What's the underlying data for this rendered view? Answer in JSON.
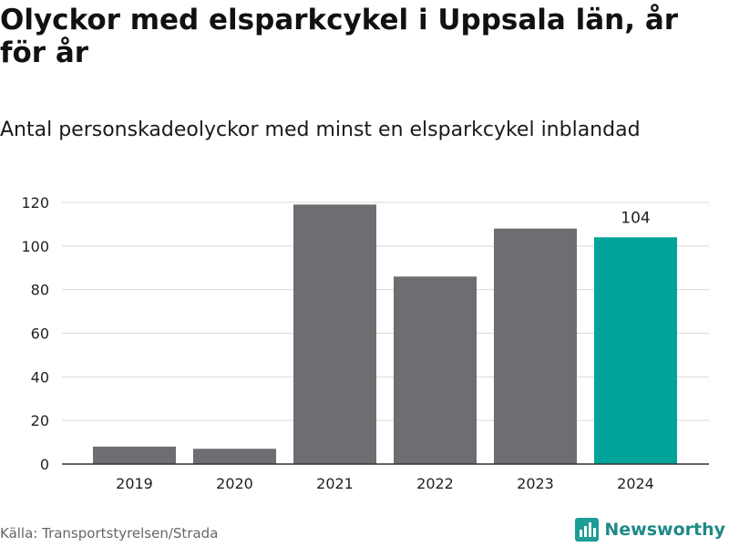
{
  "title": "Olyckor med elsparkcykel i Uppsala län, år för år",
  "subtitle": "Antal personskadeolyckor med minst en elsparkcykel inblandad",
  "source": "Källa: Transportstyrelsen/Strada",
  "brand": {
    "name": "Newsworthy",
    "icon": "newsworthy-logo-icon",
    "color": "#1e9c97"
  },
  "colors": {
    "bar": "#6e6d72",
    "highlight": "#00a39a",
    "grid": "#d9d9d9",
    "axis": "#333333"
  },
  "chart_data": {
    "type": "bar",
    "categories": [
      "2019",
      "2020",
      "2021",
      "2022",
      "2023",
      "2024"
    ],
    "values": [
      8,
      7,
      119,
      86,
      108,
      104
    ],
    "highlight_index": 5,
    "data_labels": [
      null,
      null,
      null,
      null,
      null,
      "104"
    ],
    "yticks": [
      "0",
      "20",
      "40",
      "60",
      "80",
      "100",
      "120"
    ],
    "ylim": [
      0,
      120
    ],
    "grid": true,
    "xlabel": "",
    "ylabel": ""
  }
}
